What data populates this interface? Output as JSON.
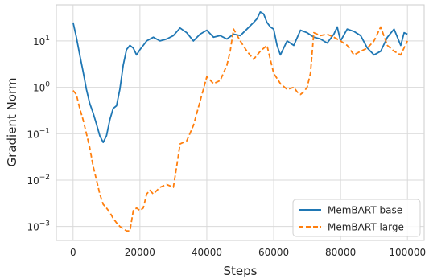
{
  "chart_data": {
    "type": "line",
    "xlabel": "Steps",
    "ylabel": "Gradient Norm",
    "xlim": [
      -5000,
      105000
    ],
    "ylim": [
      0.0005,
      60
    ],
    "y_scale": "log",
    "grid": true,
    "legend_position": "lower-right",
    "x_ticks": [
      0,
      20000,
      40000,
      60000,
      80000,
      100000
    ],
    "x_tick_labels": [
      "0",
      "20000",
      "40000",
      "60000",
      "80000",
      "100000"
    ],
    "y_ticks": [
      0.001,
      0.01,
      0.1,
      1,
      10
    ],
    "y_tick_labels": [
      {
        "base": "10",
        "exp": "−3"
      },
      {
        "base": "10",
        "exp": "−2"
      },
      {
        "base": "10",
        "exp": "−1"
      },
      {
        "base": "10",
        "exp": "0"
      },
      {
        "base": "10",
        "exp": "1"
      }
    ],
    "series": [
      {
        "name": "MemBART base",
        "color": "#1f77b4",
        "dash": "solid",
        "x": [
          0,
          1000,
          2000,
          3000,
          4000,
          5000,
          6000,
          7000,
          8000,
          9000,
          10000,
          11000,
          12000,
          13000,
          14000,
          15000,
          16000,
          17000,
          18000,
          19000,
          20000,
          21000,
          22000,
          24000,
          26000,
          28000,
          30000,
          32000,
          34000,
          36000,
          38000,
          40000,
          42000,
          44000,
          46000,
          48000,
          50000,
          52000,
          54000,
          55000,
          56000,
          57000,
          58000,
          59000,
          60000,
          61000,
          62000,
          64000,
          66000,
          68000,
          70000,
          72000,
          74000,
          76000,
          78000,
          79000,
          80000,
          82000,
          84000,
          86000,
          88000,
          90000,
          92000,
          94000,
          96000,
          98000,
          99000,
          100000
        ],
        "values": [
          25,
          12,
          5,
          2.2,
          0.9,
          0.45,
          0.28,
          0.16,
          0.09,
          0.065,
          0.09,
          0.2,
          0.35,
          0.4,
          0.9,
          3,
          6.5,
          8,
          7,
          5,
          6.5,
          8,
          10,
          12,
          10,
          11,
          13,
          19,
          15,
          10,
          14,
          17,
          12,
          13,
          11,
          14,
          13,
          18,
          25,
          30,
          42,
          38,
          25,
          20,
          18,
          8,
          5,
          10,
          8,
          17,
          15,
          12,
          11,
          9,
          14,
          20,
          10,
          18,
          16,
          13,
          7,
          5,
          6,
          12,
          18,
          8,
          15,
          14
        ]
      },
      {
        "name": "MemBART large",
        "color": "#ff7f0e",
        "dash": "dashed",
        "x": [
          0,
          1000,
          2000,
          3000,
          4000,
          5000,
          6000,
          7000,
          8000,
          9000,
          10000,
          11000,
          12000,
          13000,
          14000,
          15000,
          16000,
          17000,
          18000,
          19000,
          20000,
          21000,
          22000,
          23000,
          24000,
          26000,
          28000,
          30000,
          31000,
          32000,
          34000,
          36000,
          38000,
          40000,
          42000,
          44000,
          46000,
          47000,
          48000,
          50000,
          52000,
          54000,
          56000,
          58000,
          60000,
          62000,
          64000,
          66000,
          67000,
          68000,
          69000,
          70000,
          71000,
          72000,
          74000,
          76000,
          78000,
          80000,
          82000,
          84000,
          86000,
          88000,
          90000,
          92000,
          94000,
          96000,
          98000,
          100000
        ],
        "values": [
          0.85,
          0.7,
          0.35,
          0.2,
          0.1,
          0.05,
          0.02,
          0.01,
          0.005,
          0.003,
          0.0025,
          0.002,
          0.0015,
          0.0012,
          0.001,
          0.0009,
          0.0008,
          0.0008,
          0.0022,
          0.0025,
          0.0022,
          0.0025,
          0.005,
          0.006,
          0.005,
          0.007,
          0.008,
          0.007,
          0.02,
          0.06,
          0.07,
          0.15,
          0.5,
          1.7,
          1.2,
          1.4,
          3,
          6,
          18,
          10,
          6,
          4,
          6,
          8,
          2,
          1.2,
          0.9,
          1,
          0.8,
          0.7,
          0.8,
          1,
          2,
          15,
          13,
          14,
          12,
          10,
          8,
          5,
          6,
          7,
          10,
          20,
          8,
          6,
          5,
          10
        ]
      }
    ]
  }
}
